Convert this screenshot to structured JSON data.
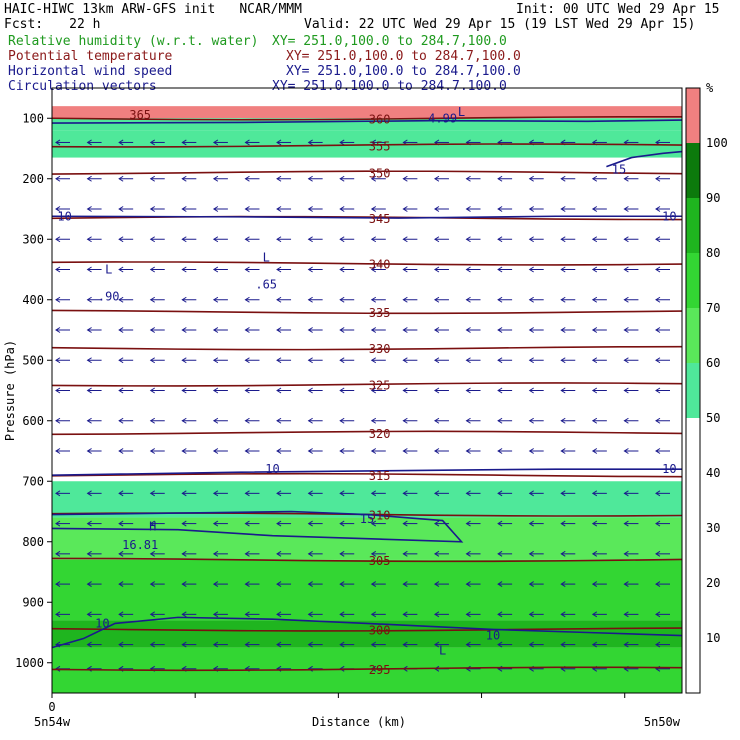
{
  "header": {
    "left_title": "HAIC-HIWC 13km ARW-GFS init",
    "center_title": "NCAR/MMM",
    "init_text": "Init: 00 UTC Wed 29 Apr 15",
    "fcst_label": "Fcst:",
    "fcst_value": "22 h",
    "valid_text": "Valid: 22 UTC Wed 29 Apr 15 (19 LST Wed 29 Apr 15)"
  },
  "fields": [
    {
      "label": "Relative humidity (w.r.t. water)",
      "xy": "XY= 251.0,100.0 to 284.7,100.0",
      "color": "#1f9a1f"
    },
    {
      "label": "Potential temperature",
      "xy": "XY= 251.0,100.0 to 284.7,100.0",
      "color": "#8b1a1a"
    },
    {
      "label": "Horizontal wind speed",
      "xy": "XY= 251.0,100.0 to 284.7,100.0",
      "color": "#1a1a8c"
    },
    {
      "label": "Circulation vectors",
      "xy": "XY= 251.0,100.0 to 284.7,100.0",
      "color": "#1a1a8c"
    }
  ],
  "colors": {
    "theta": "#7a1010",
    "wind": "#1a1a8c",
    "vector": "#1a1a8c"
  },
  "chart_data": {
    "type": "heatmap",
    "xlabel": "Distance (km)",
    "ylabel": "Pressure (hPa)",
    "x_tick_label": "0",
    "x_end_labels": [
      "5n54w",
      "5n50w"
    ],
    "y_ticks": [
      100,
      200,
      300,
      400,
      500,
      600,
      700,
      800,
      900,
      1000
    ],
    "ylim": [
      1050,
      50
    ],
    "colorbar": {
      "unit": "%",
      "tick_labels": [
        "10",
        "20",
        "30",
        "40",
        "50",
        "60",
        "70",
        "80",
        "90",
        "100"
      ],
      "bins": [
        {
          "from": 0,
          "to": 50,
          "color": "#ffffff"
        },
        {
          "from": 50,
          "to": 60,
          "color": "#4fe89a"
        },
        {
          "from": 60,
          "to": 70,
          "color": "#5ae85a"
        },
        {
          "from": 70,
          "to": 80,
          "color": "#33d633"
        },
        {
          "from": 80,
          "to": 90,
          "color": "#1fb51f"
        },
        {
          "from": 90,
          "to": 100,
          "color": "#0c7a0c"
        },
        {
          "from": 100,
          "to": 110,
          "color": "#f08080"
        }
      ]
    },
    "rh_regions": [
      {
        "p_top": 80,
        "p_bot": 100,
        "rh": 105
      },
      {
        "p_top": 100,
        "p_bot": 120,
        "rh": 55
      },
      {
        "p_top": 120,
        "p_bot": 165,
        "rh": 52
      },
      {
        "p_top": 700,
        "p_bot": 760,
        "rh": 55
      },
      {
        "p_top": 760,
        "p_bot": 830,
        "rh": 62
      },
      {
        "p_top": 830,
        "p_bot": 930,
        "rh": 75
      },
      {
        "p_top": 930,
        "p_bot": 975,
        "rh": 85
      },
      {
        "p_top": 975,
        "p_bot": 1050,
        "rh": 72
      }
    ],
    "theta_contours": [
      {
        "value": 360,
        "label": "360",
        "p": 100
      },
      {
        "value": 355,
        "label": "355",
        "p": 145
      },
      {
        "value": 350,
        "label": "350",
        "p": 190
      },
      {
        "value": 345,
        "label": "345",
        "p": 265
      },
      {
        "value": 340,
        "label": "340",
        "p": 340
      },
      {
        "value": 335,
        "label": "335",
        "p": 420
      },
      {
        "value": 330,
        "label": "330",
        "p": 480
      },
      {
        "value": 325,
        "label": "325",
        "p": 540
      },
      {
        "value": 320,
        "label": "320",
        "p": 620
      },
      {
        "value": 315,
        "label": "315",
        "p": 690
      },
      {
        "value": 310,
        "label": "310",
        "p": 755
      },
      {
        "value": 305,
        "label": "305",
        "p": 830
      },
      {
        "value": 300,
        "label": "300",
        "p": 945
      },
      {
        "value": 295,
        "label": "295",
        "p": 1010
      }
    ],
    "extra_labels": [
      {
        "text": "365",
        "x": 0.14,
        "p": 95,
        "color": "#7a1010"
      },
      {
        "text": "10",
        "x": 0.02,
        "p": 262,
        "color": "#1a1a8c"
      },
      {
        "text": "10",
        "x": 0.98,
        "p": 262,
        "color": "#1a1a8c"
      },
      {
        "text": "15",
        "x": 0.9,
        "p": 185,
        "color": "#1a1a8c"
      },
      {
        "text": "L",
        "x": 0.09,
        "p": 350,
        "color": "#1a1a8c"
      },
      {
        "text": ".90",
        "x": 0.09,
        "p": 395,
        "color": "#1a1a8c"
      },
      {
        "text": "L",
        "x": 0.34,
        "p": 330,
        "color": "#1a1a8c"
      },
      {
        "text": ".65",
        "x": 0.34,
        "p": 375,
        "color": "#1a1a8c"
      },
      {
        "text": "L",
        "x": 0.65,
        "p": 90,
        "color": "#1a1a8c"
      },
      {
        "text": "4.99",
        "x": 0.62,
        "p": 100,
        "color": "#1a1a8c"
      },
      {
        "text": "10",
        "x": 0.35,
        "p": 680,
        "color": "#1a1a8c"
      },
      {
        "text": "10",
        "x": 0.98,
        "p": 680,
        "color": "#1a1a8c"
      },
      {
        "text": "15",
        "x": 0.5,
        "p": 762,
        "color": "#1a1a8c"
      },
      {
        "text": "H",
        "x": 0.16,
        "p": 775,
        "color": "#1a1a8c"
      },
      {
        "text": "16.81",
        "x": 0.14,
        "p": 805,
        "color": "#1a1a8c"
      },
      {
        "text": "10",
        "x": 0.08,
        "p": 935,
        "color": "#1a1a8c"
      },
      {
        "text": "10",
        "x": 0.7,
        "p": 955,
        "color": "#1a1a8c"
      },
      {
        "text": "L",
        "x": 0.62,
        "p": 980,
        "color": "#1a1a8c"
      }
    ],
    "wind_contours": [
      {
        "value": 10,
        "points": [
          [
            0,
            262
          ],
          [
            0.3,
            263
          ],
          [
            0.55,
            265
          ],
          [
            0.8,
            262
          ],
          [
            1,
            262
          ]
        ]
      },
      {
        "value": 10,
        "points": [
          [
            0,
            690
          ],
          [
            0.3,
            685
          ],
          [
            0.6,
            682
          ],
          [
            0.8,
            680
          ],
          [
            1,
            680
          ]
        ]
      },
      {
        "value": 15,
        "points": [
          [
            0,
            755
          ],
          [
            0.25,
            752
          ],
          [
            0.38,
            750
          ],
          [
            0.5,
            755
          ],
          [
            0.62,
            765
          ],
          [
            0.65,
            800
          ],
          [
            0.5,
            795
          ],
          [
            0.35,
            790
          ],
          [
            0.2,
            780
          ],
          [
            0,
            778
          ]
        ]
      },
      {
        "value": 10,
        "points": [
          [
            0,
            975
          ],
          [
            0.05,
            960
          ],
          [
            0.1,
            935
          ],
          [
            0.2,
            925
          ],
          [
            0.35,
            928
          ],
          [
            0.5,
            935
          ],
          [
            0.7,
            945
          ],
          [
            0.85,
            950
          ],
          [
            1,
            955
          ]
        ]
      },
      {
        "value": 15,
        "points": [
          [
            0,
            108
          ],
          [
            0.3,
            107
          ],
          [
            0.6,
            104
          ],
          [
            0.85,
            105
          ],
          [
            1,
            103
          ]
        ]
      },
      {
        "value": 15,
        "points": [
          [
            0.88,
            180
          ],
          [
            0.92,
            165
          ],
          [
            0.97,
            158
          ],
          [
            1,
            155
          ]
        ]
      }
    ],
    "vectors": {
      "rows": [
        {
          "p": 140,
          "u": -1
        },
        {
          "p": 200,
          "u": -1
        },
        {
          "p": 250,
          "u": -1
        },
        {
          "p": 300,
          "u": -1
        },
        {
          "p": 350,
          "u": -1
        },
        {
          "p": 400,
          "u": -1
        },
        {
          "p": 450,
          "u": -1
        },
        {
          "p": 500,
          "u": -1
        },
        {
          "p": 550,
          "u": -1
        },
        {
          "p": 600,
          "u": -1
        },
        {
          "p": 650,
          "u": -1
        },
        {
          "p": 720,
          "u": -1
        },
        {
          "p": 770,
          "u": -1
        },
        {
          "p": 820,
          "u": -1
        },
        {
          "p": 870,
          "u": -1
        },
        {
          "p": 920,
          "u": -1
        },
        {
          "p": 970,
          "u": -1
        },
        {
          "p": 1010,
          "u": -1
        }
      ],
      "columns": 20
    }
  }
}
